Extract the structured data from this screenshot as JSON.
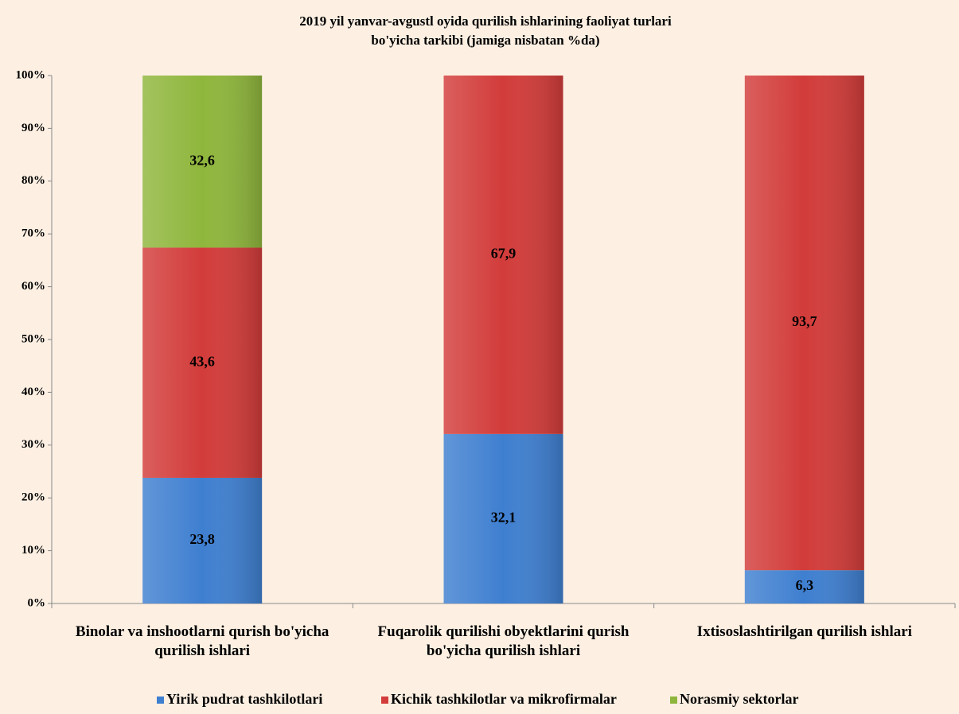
{
  "chart_data": {
    "type": "bar",
    "stacked": true,
    "title": [
      "2019 yil yanvar-avgustl oyida qurilish ishlarining faoliyat turlari",
      "bo'yicha tarkibi (jamiga nisbatan %da)"
    ],
    "categories": [
      "Binolar va inshootlarni qurish bo'yicha qurilish ishlari",
      "Fuqarolik qurilishi obyektlarini qurish bo'yicha qurilish ishlari",
      "Ixtisoslashtirilgan qurilish ishlari"
    ],
    "series": [
      {
        "name": "Yirik pudrat tashkilotlari",
        "color": "#3f7fd0",
        "values": [
          23.8,
          32.1,
          6.3
        ],
        "value_labels": [
          "23,8",
          "32,1",
          "6,3"
        ]
      },
      {
        "name": "Kichik tashkilotlar va  mikrofirmalar",
        "color": "#d23c3a",
        "values": [
          43.6,
          67.9,
          93.7
        ],
        "value_labels": [
          "43,6",
          "67,9",
          "93,7"
        ]
      },
      {
        "name": "Norasmiy sektorlar",
        "color": "#8fb63c",
        "values": [
          32.6,
          null,
          null
        ],
        "value_labels": [
          "32,6",
          null,
          null
        ]
      }
    ],
    "ylim": [
      0,
      100
    ],
    "yticks": [
      {
        "value": 0,
        "label": "0%"
      },
      {
        "value": 10,
        "label": "10%"
      },
      {
        "value": 20,
        "label": "20%"
      },
      {
        "value": 30,
        "label": "30%"
      },
      {
        "value": 40,
        "label": "40%"
      },
      {
        "value": 50,
        "label": "50%"
      },
      {
        "value": 60,
        "label": "60%"
      },
      {
        "value": 70,
        "label": "70%"
      },
      {
        "value": 80,
        "label": "80%"
      },
      {
        "value": 90,
        "label": "90%"
      },
      {
        "value": 100,
        "label": "100%"
      }
    ],
    "legend": "bottom"
  }
}
